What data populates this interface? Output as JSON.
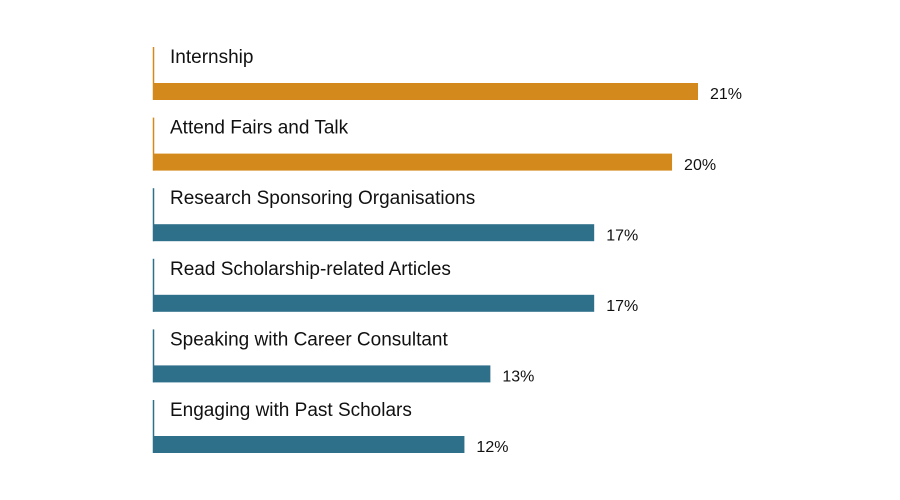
{
  "chart_data": {
    "type": "bar",
    "orientation": "horizontal",
    "categories": [
      "Internship",
      "Attend Fairs and Talk",
      "Research Sponsoring Organisations",
      "Read Scholarship-related Articles",
      "Speaking with Career Consultant",
      "Engaging with Past Scholars"
    ],
    "values": [
      21,
      20,
      17,
      17,
      13,
      12
    ],
    "value_labels": [
      "21%",
      "20%",
      "17%",
      "17%",
      "13%",
      "12%"
    ],
    "colors": [
      "#d4891c",
      "#d4891c",
      "#2e6f8a",
      "#2e6f8a",
      "#2e6f8a",
      "#2e6f8a"
    ]
  }
}
